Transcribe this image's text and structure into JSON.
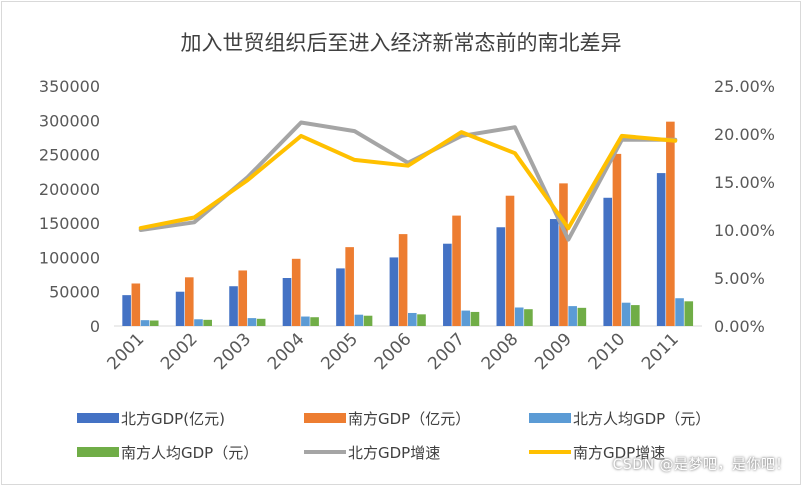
{
  "chart_data": {
    "type": "bar",
    "title": "加入世贸组织后至进入经济新常态前的南北差异",
    "categories": [
      "2001",
      "2002",
      "2003",
      "2004",
      "2005",
      "2006",
      "2007",
      "2008",
      "2009",
      "2010",
      "2011"
    ],
    "y_left": {
      "min": 0,
      "max": 350000,
      "step": 50000,
      "tick_labels": [
        "0",
        "50000",
        "100000",
        "150000",
        "200000",
        "250000",
        "300000",
        "350000"
      ]
    },
    "y_right": {
      "min": 0,
      "max": 25,
      "step": 5,
      "tick_labels": [
        "0.00%",
        "5.00%",
        "10.00%",
        "15.00%",
        "20.00%",
        "25.00%"
      ]
    },
    "series": [
      {
        "name": "北方GDP(亿元)",
        "kind": "bar",
        "axis": "left",
        "color": "#4472C4",
        "values": [
          45000,
          50000,
          58000,
          70000,
          84000,
          100000,
          120000,
          144000,
          156000,
          187000,
          223000
        ]
      },
      {
        "name": "南方GDP（亿元）",
        "kind": "bar",
        "axis": "left",
        "color": "#ED7D31",
        "values": [
          62000,
          71000,
          81000,
          98000,
          115000,
          134000,
          161000,
          190000,
          208000,
          251000,
          298000
        ]
      },
      {
        "name": "北方人均GDP（元）",
        "kind": "bar",
        "axis": "left",
        "color": "#5B9BD5",
        "values": [
          8500,
          9800,
          11500,
          13800,
          16500,
          19000,
          22500,
          27000,
          29000,
          34000,
          40500
        ]
      },
      {
        "name": "南方人均GDP（元）",
        "kind": "bar",
        "axis": "left",
        "color": "#70AD47",
        "values": [
          8000,
          9000,
          10500,
          12800,
          15000,
          17000,
          20500,
          24500,
          26500,
          30500,
          36000
        ]
      },
      {
        "name": "北方GDP增速",
        "kind": "line",
        "axis": "right",
        "color": "#A5A5A5",
        "values": [
          10.0,
          10.8,
          15.5,
          21.2,
          20.3,
          17.0,
          19.8,
          20.7,
          9.0,
          19.4,
          19.4
        ]
      },
      {
        "name": "南方GDP增速",
        "kind": "line",
        "axis": "right",
        "color": "#FFC000",
        "values": [
          10.2,
          11.3,
          15.2,
          19.8,
          17.3,
          16.7,
          20.2,
          18.0,
          10.2,
          19.8,
          19.3
        ]
      }
    ],
    "legend_position": "bottom",
    "grid": false
  },
  "watermark": "CSDN @是梦吧，是你吧！"
}
